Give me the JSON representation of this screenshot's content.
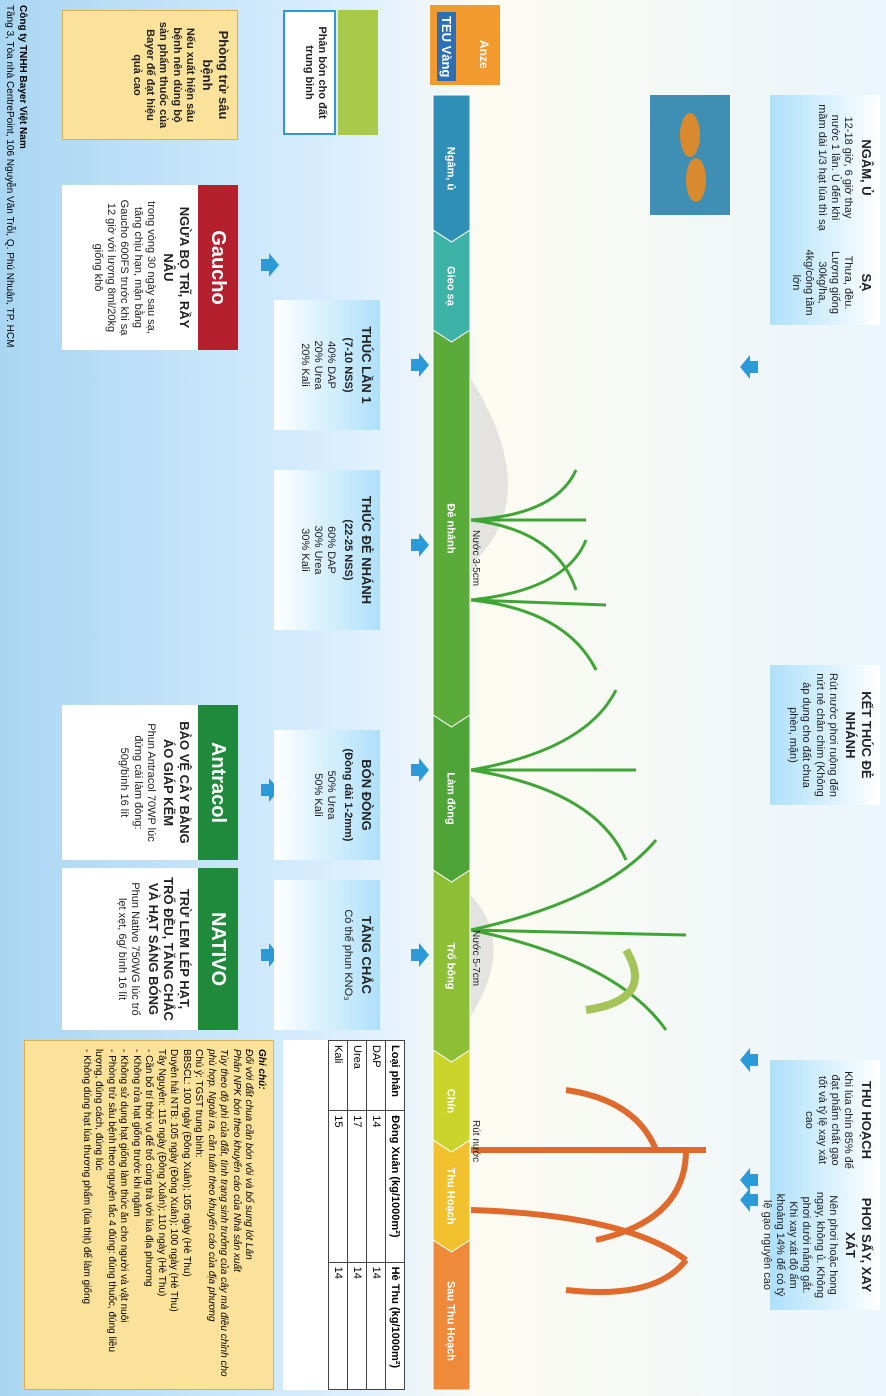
{
  "logo": {
    "brand": "Anze",
    "name": "TEU Vàng"
  },
  "top_boxes": [
    {
      "title": "NGÂM, Ủ",
      "text": "12-18 giờ, 6 giờ thay nước 1 lần. Ủ đến khi mầm dài 1/3 hạt lúa thì sạ"
    },
    {
      "title": "SẠ",
      "text": "Thưa, đều. Lượng giống 30kg/ha, 4kg/công tầm lớn"
    },
    {
      "title": "KẾT THÚC ĐẺ NHÁNH",
      "text": "Rút nước phơi ruộng đến nứt nẻ chân chim (Không áp dụng cho đất chua phèn, mặn)"
    },
    {
      "title": "THU HOẠCH",
      "text": "Khi lúa chín 85% để đạt phẩm chất gạo tốt và tỷ lệ xay xát cao"
    },
    {
      "title": "PHƠI SẤY, XAY XÁT",
      "text": "Nên phơi hoặc hong ngay, không ủ. Không phơi dưới nắng gắt. Khi xay xát độ ẩm khoảng 14% để có tỷ lệ gạo nguyên cao"
    }
  ],
  "stages": [
    {
      "name": "Ngâm, ủ",
      "color": "#2f8fb7"
    },
    {
      "name": "Gieo sạ",
      "color": "#3cb3a6"
    },
    {
      "name": "Đẻ nhánh",
      "color": "#5bab3a"
    },
    {
      "name": "Làm đòng",
      "color": "#4ea437"
    },
    {
      "name": "Trổ bông",
      "color": "#8dbf36"
    },
    {
      "name": "Chín",
      "color": "#cad42b"
    },
    {
      "name": "Thu Hoạch",
      "color": "#f1c22d"
    },
    {
      "name": "Sau Thu Hoạch",
      "color": "#ef8a3a"
    }
  ],
  "water_labels": [
    "Nước 3-5cm",
    "Nước 5-7cm",
    "Rút nước"
  ],
  "fert_boxes": [
    {
      "title": "THÚC LẦN 1",
      "sub": "(7-10 NSS)",
      "lines": [
        "40% DAP",
        "20% Urea",
        "20% Kali"
      ]
    },
    {
      "title": "THÚC ĐẺ NHÁNH",
      "sub": "(22-25 NSS)",
      "lines": [
        "60% DAP",
        "30% Urea",
        "30% Kali"
      ]
    },
    {
      "title": "BÓN ĐÒNG",
      "sub": "(Đòng dài 1-2mm)",
      "lines": [
        "50% Urea",
        "50% Kali"
      ]
    },
    {
      "title": "TĂNG CHẮC",
      "sub": "",
      "lines": [
        "Có thể phun KNO₃"
      ]
    }
  ],
  "products": [
    {
      "brand": "Gaucho",
      "color": "#b5202e",
      "title": "NGỪA BỌ TRĨ, RẦY NÂU",
      "text": "trong vòng 30 ngày sau sạ, tăng chịu hạn, mặn bằng Gaucho 600FS trước khi sạ 12 giờ với lượng 8ml/20kg giống khô"
    },
    {
      "brand": "Antracol",
      "color": "#1f8a3c",
      "title": "BẢO VỆ CÂY BẰNG ÁO GIÁP KẼM",
      "text": "Phun Antracol 70WP lúc đứng cái làm đòng: 50g/bình 16 lít"
    },
    {
      "brand": "NATIVO",
      "color": "#1f8a3c",
      "title": "TRỪ LEM LÉP HẠT, TRỔ ĐỀU, TĂNG CHẮC VÀ HẠT SÁNG BÓNG",
      "text": "Phun Nativo 750WG lúc trổ lẹt xẹt, 6g/ bình 16 lít"
    }
  ],
  "fert_note": "Phân bón cho đất trung bình",
  "pest_box": {
    "title": "Phòng trừ sâu bệnh",
    "text": "Nếu xuất hiện sâu bệnh nên dùng bộ sản phẩm thuốc của Bayer để đạt hiệu quả cao"
  },
  "table": {
    "header": [
      "Loại phân",
      "Đông Xuân (kg/1000m²)",
      "Hè Thu (kg/1000m²)"
    ],
    "rows": [
      [
        "DAP",
        "14",
        "14"
      ],
      [
        "Urea",
        "17",
        "14"
      ],
      [
        "Kali",
        "15",
        "14"
      ]
    ]
  },
  "notes": {
    "title": "Ghi chú:",
    "lines": [
      "Đối với đất chua cần bón vôi và bổ sung lót Lân",
      "Phân NPK bón theo khuyến cáo của Nhà sản xuất",
      "Tùy theo độ phì của đất, tình trạng sinh trưởng của cây mà điều chỉnh cho phù hợp. Ngoài ra, cần tuân theo khuyến cáo của địa phương",
      "Chú ý: TGST trung bình:",
      "BBSCL: 100 ngày (Đông Xuân); 105 ngày (Hè Thu)",
      "Duyên hải NTB: 105 ngày (Đông Xuân); 100 ngày (Hè Thu)",
      "Tây Nguyên: 115 ngày (Đông Xuân); 110 ngày (Hè Thu)",
      "- Cần bố trí thời vụ để trổ cùng trà với lúa địa phương",
      "- Không rửa hạt giống trước khi ngâm",
      "- Không sử dụng hạt giống làm thức ăn cho người và vật nuôi",
      "- Phòng trừ sâu bệnh theo nguyên tắc 4 đúng: đúng thuốc, đúng liều lượng, đúng cách, đúng lúc",
      "- Không dùng hạt lúa thương phẩm (lúa thịt) để làm giống"
    ]
  },
  "footer": [
    "Công ty TNHH Bayer Việt Nam",
    "Tầng 3, Tòa nhà CentrePoint, 106 Nguyễn Văn Trỗi, Q. Phú Nhuận, TP. HCM"
  ]
}
